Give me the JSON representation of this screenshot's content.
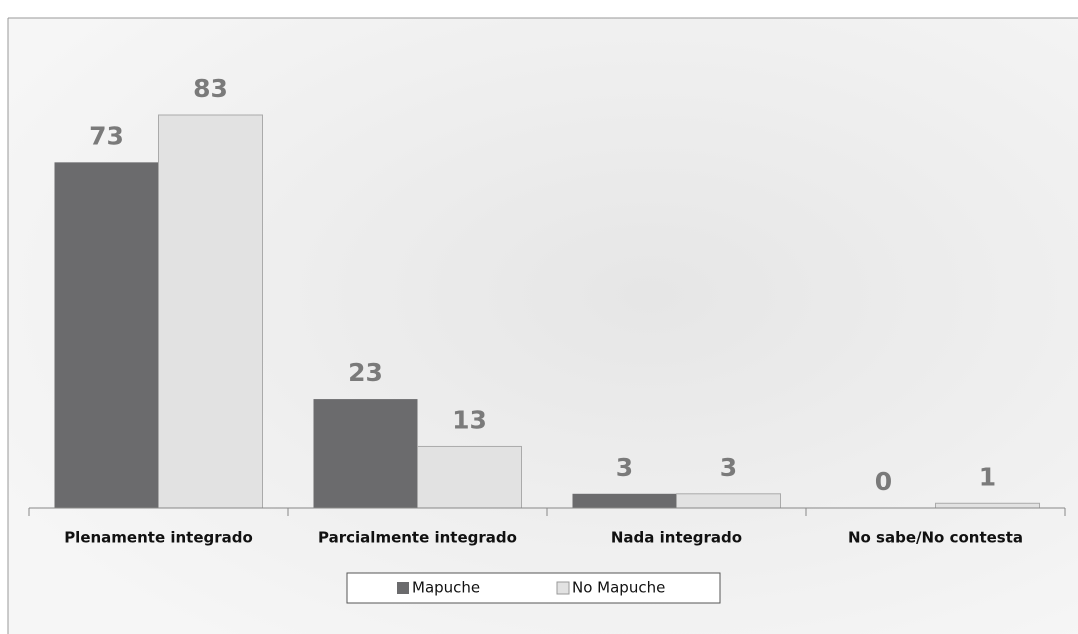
{
  "chart_data": {
    "type": "bar",
    "categories": [
      "Plenamente integrado",
      "Parcialmente integrado",
      "Nada integrado",
      "No sabe/No contesta"
    ],
    "series": [
      {
        "name": "Mapuche",
        "color": "#6b6b6d",
        "values": [
          73,
          23,
          3,
          0
        ]
      },
      {
        "name": "No Mapuche",
        "color": "#e2e2e2",
        "values": [
          83,
          13,
          3,
          1
        ]
      }
    ]
  }
}
